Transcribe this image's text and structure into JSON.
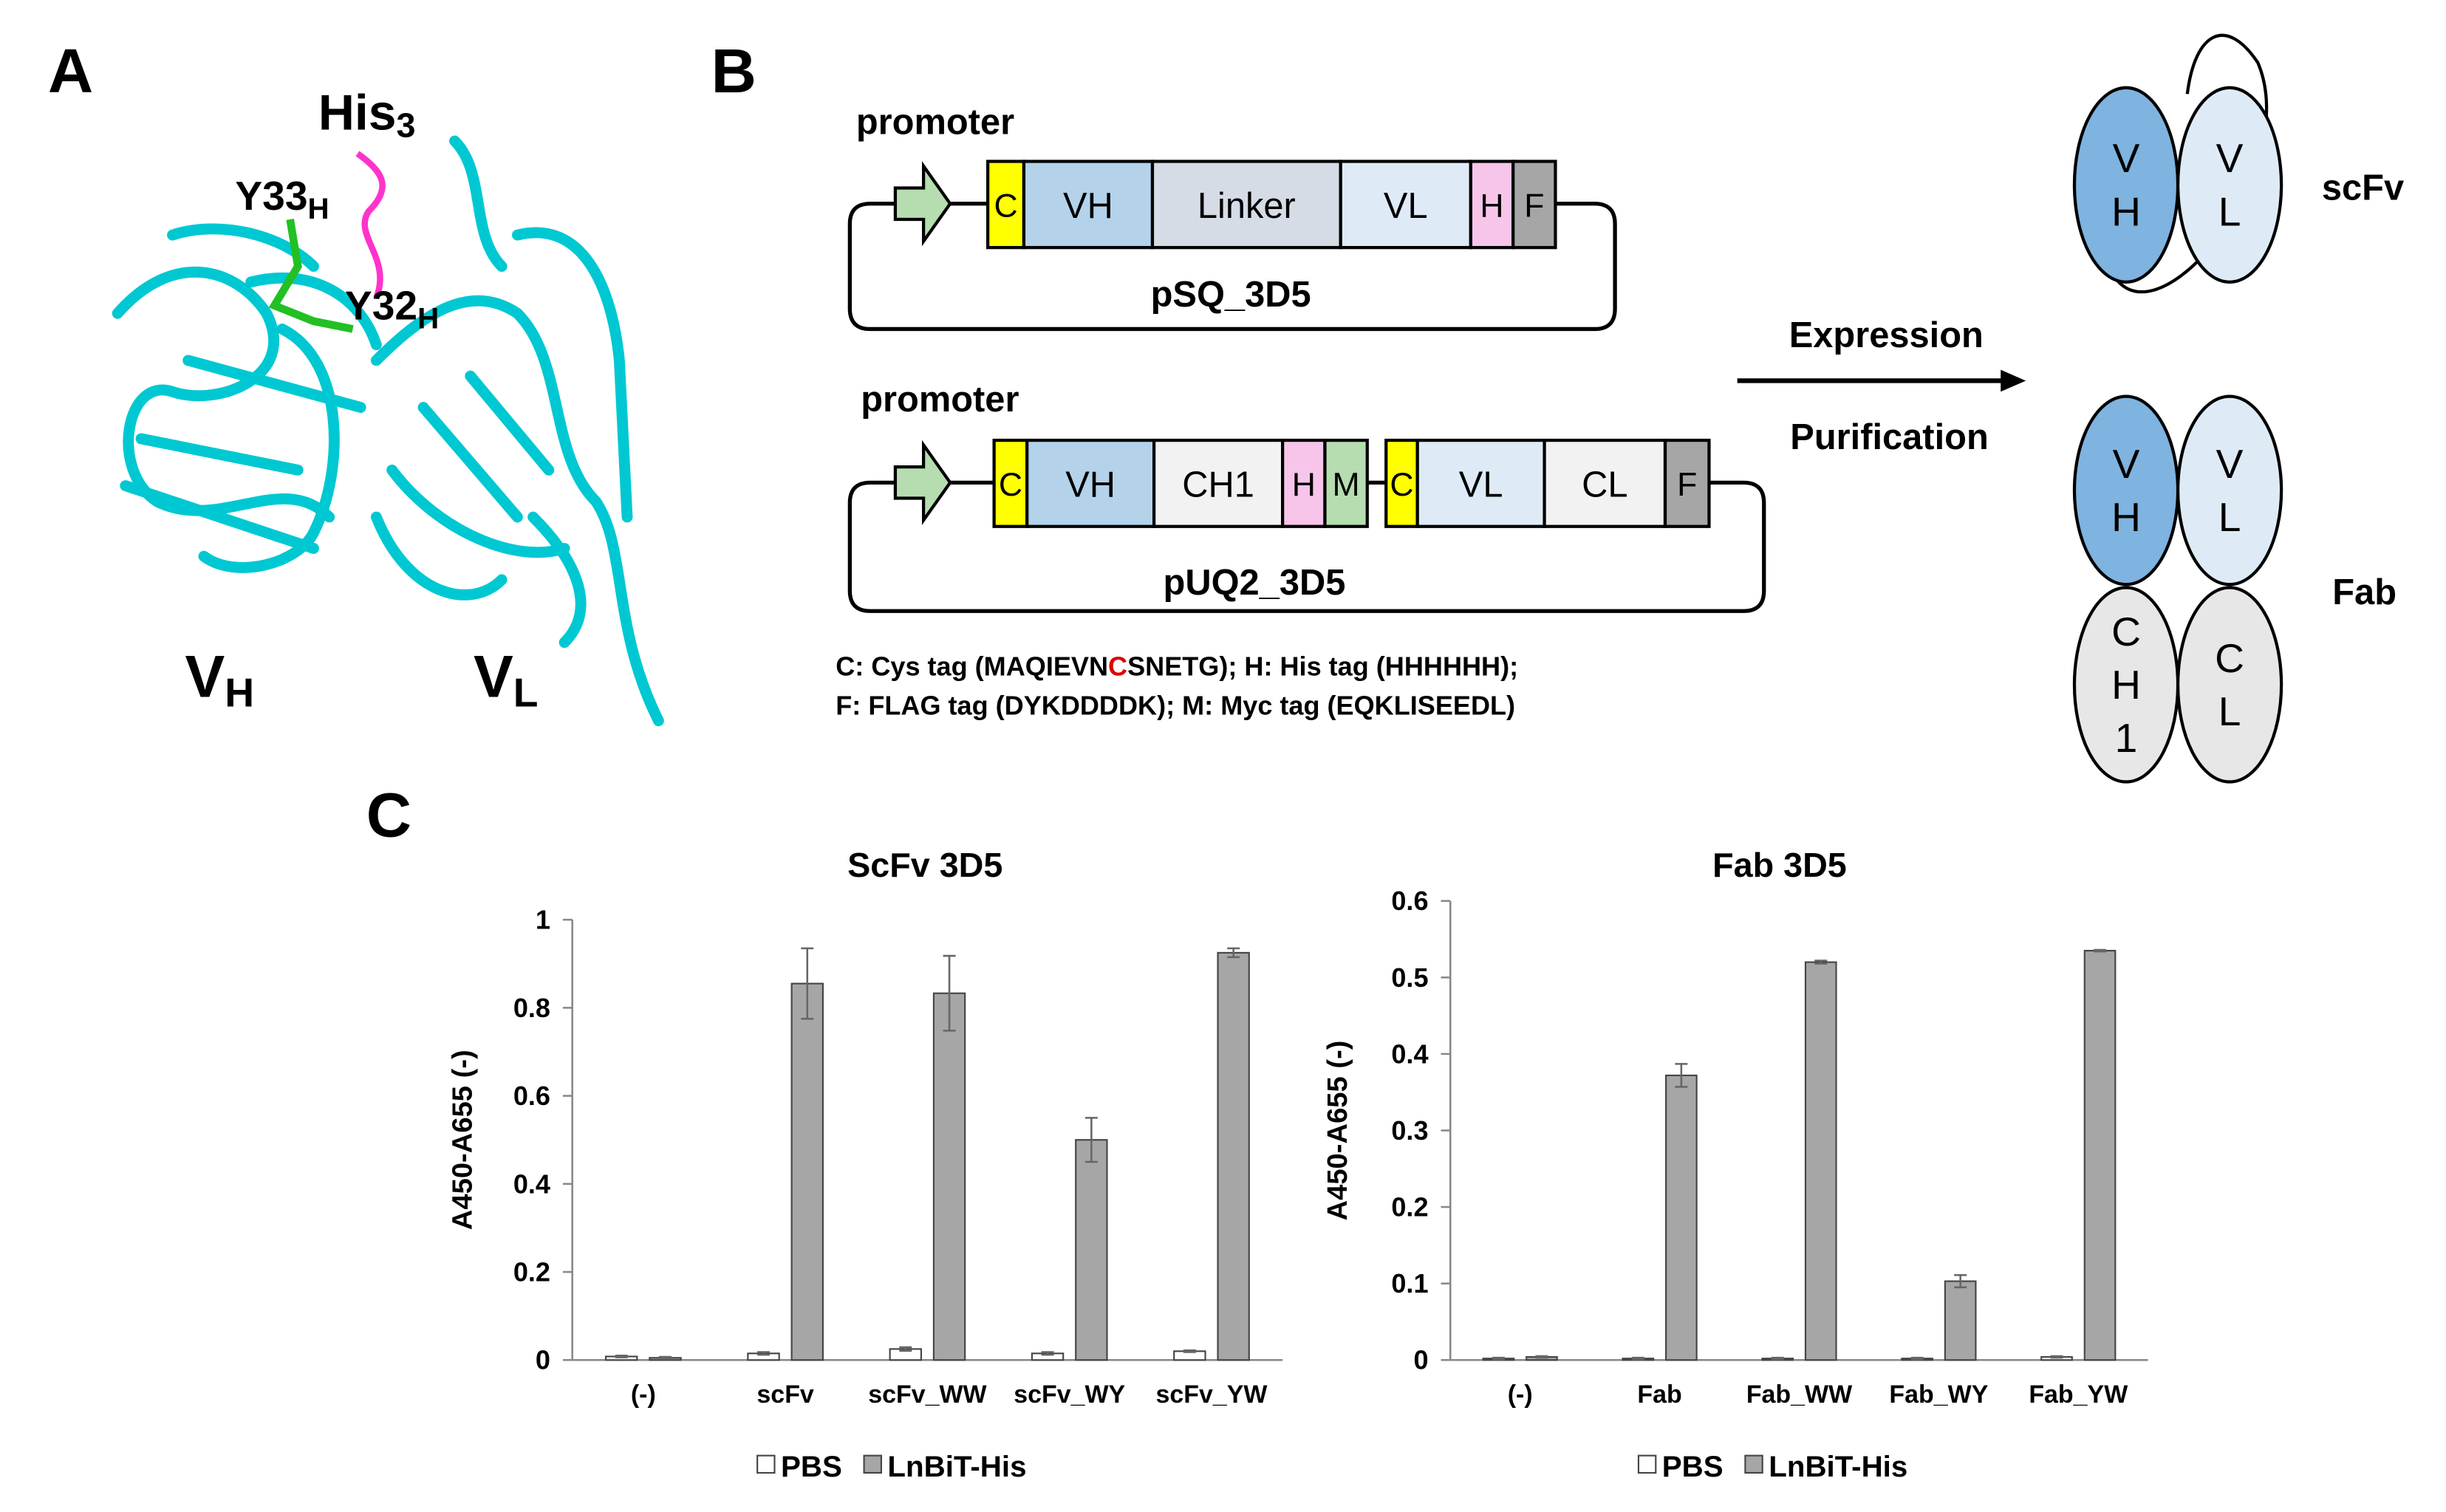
{
  "panel_labels": [
    "A",
    "B",
    "C"
  ],
  "structure": {
    "his": {
      "base": "His",
      "sub": "3"
    },
    "y33": {
      "base": "Y33",
      "sub": "H"
    },
    "y32": {
      "base": "Y32",
      "sub": "H"
    },
    "vh": {
      "base": "V",
      "sub": "H"
    },
    "vl": {
      "base": "V",
      "sub": "L"
    }
  },
  "constructs": [
    {
      "promoter": "promoter",
      "name": "pSQ_3D5",
      "segments": [
        {
          "label": "C",
          "color": "#ffff00"
        },
        {
          "label": "VH",
          "color": "#b4d3ea"
        },
        {
          "label": "Linker",
          "color": "#d6dce5"
        },
        {
          "label": "VL",
          "color": "#deebf7"
        },
        {
          "label": "H",
          "color": "#f7c5ea"
        },
        {
          "label": "F",
          "color": "#a6a6a6"
        }
      ]
    },
    {
      "promoter": "promoter",
      "name": "pUQ2_3D5",
      "segments": [
        {
          "label": "C",
          "color": "#ffff00"
        },
        {
          "label": "VH",
          "color": "#b4d3ea"
        },
        {
          "label": "CH1",
          "color": "#f2f2f2"
        },
        {
          "label": "H",
          "color": "#f7c5ea"
        },
        {
          "label": "M",
          "color": "#b5ddb0"
        },
        {
          "label": "C",
          "color": "#ffff00"
        },
        {
          "label": "VL",
          "color": "#deebf7"
        },
        {
          "label": "CL",
          "color": "#f2f2f2"
        },
        {
          "label": "F",
          "color": "#a6a6a6"
        }
      ]
    }
  ],
  "tag_legend": [
    [
      "C: Cys tag (MAQIEVN",
      "C",
      "SNETG); H: His tag (HHHHHH);"
    ],
    [
      "F: FLAG tag (DYKDDDDK); M: Myc tag (EQKLISEEDL)"
    ]
  ],
  "process": [
    "Expression",
    "Purification"
  ],
  "formats": [
    {
      "name": "scFv",
      "domains": [
        {
          "label": "VH",
          "color": "#7fb3e0"
        },
        {
          "label": "VL",
          "color": "#deebf7"
        }
      ]
    },
    {
      "name": "Fab",
      "domains": [
        {
          "label": "VH",
          "color": "#7fb3e0"
        },
        {
          "label": "VL",
          "color": "#deebf7"
        },
        {
          "label": "CH1",
          "color": "#e7e7e7"
        },
        {
          "label": "CL",
          "color": "#e7e7e7"
        }
      ]
    }
  ],
  "chart_data": [
    {
      "type": "bar",
      "title": "ScFv 3D5",
      "y_label": "A450-A655 (-)",
      "categories": [
        "(-)",
        "scFv",
        "scFv_WW",
        "scFv_WY",
        "scFv_YW"
      ],
      "series": [
        {
          "name": "PBS",
          "color": "#ffffff",
          "values": [
            0.008,
            0.015,
            0.025,
            0.015,
            0.02
          ],
          "errors": [
            0.002,
            0.003,
            0.004,
            0.003,
            0.002
          ]
        },
        {
          "name": "LnBiT-His",
          "color": "#a6a6a6",
          "values": [
            0.005,
            0.855,
            0.833,
            0.5,
            0.925
          ],
          "errors": [
            0.002,
            0.08,
            0.085,
            0.05,
            0.01
          ]
        }
      ],
      "ylim": [
        0,
        1
      ],
      "yticks": [
        0,
        0.2,
        0.4,
        0.6,
        0.8,
        1
      ],
      "grid": false
    },
    {
      "type": "bar",
      "title": "Fab 3D5",
      "y_label": "A450-A655 (-)",
      "categories": [
        "(-)",
        "Fab",
        "Fab_WW",
        "Fab_WY",
        "Fab_YW"
      ],
      "series": [
        {
          "name": "PBS",
          "color": "#ffffff",
          "values": [
            0.002,
            0.002,
            0.002,
            0.002,
            0.004
          ],
          "errors": [
            0.001,
            0.001,
            0.001,
            0.001,
            0.001
          ]
        },
        {
          "name": "LnBiT-His",
          "color": "#a6a6a6",
          "values": [
            0.004,
            0.372,
            0.52,
            0.103,
            0.535
          ],
          "errors": [
            0.001,
            0.015,
            0.002,
            0.008,
            0.001
          ]
        }
      ],
      "ylim": [
        0,
        0.6
      ],
      "yticks": [
        0,
        0.1,
        0.2,
        0.3,
        0.4,
        0.5,
        0.6
      ],
      "grid": false
    }
  ]
}
